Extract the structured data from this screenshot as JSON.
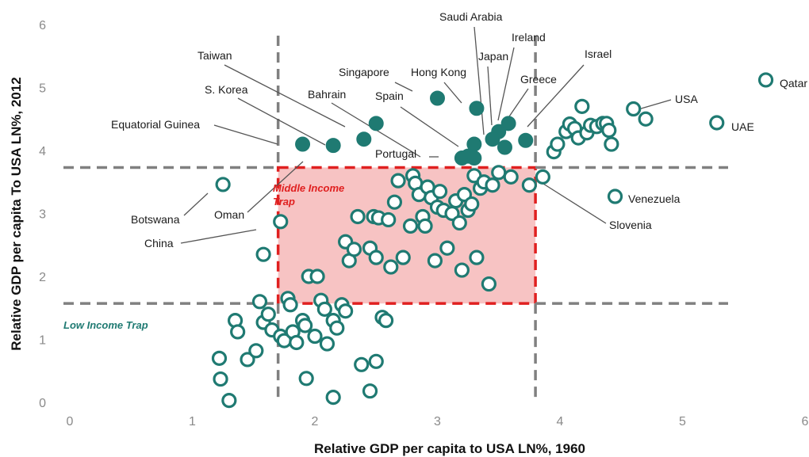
{
  "chart_data": {
    "type": "scatter",
    "xlabel": "Relative GDP per capita to USA LN%, 1960",
    "ylabel": "Relative GDP  per capita To USA LN%, 2012",
    "xlim": [
      0,
      6
    ],
    "ylim": [
      0,
      6
    ],
    "x_ticks": [
      "0",
      "1",
      "2",
      "3",
      "4",
      "5",
      "6"
    ],
    "y_ticks": [
      "0",
      "1",
      "2",
      "3",
      "4",
      "5",
      "6"
    ],
    "grid": false,
    "colors": {
      "marker": "#1f7a72",
      "trap_fill": "#f7c3c3",
      "trap_border": "#e02020",
      "guide": "#808080"
    },
    "thresholds": {
      "x_low": 1.7,
      "x_high": 3.8,
      "y_low": 1.57,
      "y_high": 3.73
    },
    "zones": {
      "middle_income": "Middle Income\nTrap",
      "low_income": "Low Income Trap"
    },
    "highlighted": [
      {
        "label": "Equatorial Guinea",
        "x": 1.9,
        "y": 4.1
      },
      {
        "label": "S. Korea",
        "x": 2.15,
        "y": 4.08
      },
      {
        "label": "Taiwan",
        "x": 2.5,
        "y": 4.43
      },
      {
        "label": "Bahrain",
        "x": 2.4,
        "y": 4.18
      },
      {
        "label": "Singapore",
        "x": 3.0,
        "y": 4.83
      },
      {
        "label": "Hong Kong",
        "x": 3.32,
        "y": 4.67
      },
      {
        "label": "Saudi Arabia",
        "x": 3.3,
        "y": 4.1
      },
      {
        "label": "Spain",
        "x": 3.25,
        "y": 3.91
      },
      {
        "label": "Portugal",
        "x": 3.2,
        "y": 3.88
      },
      {
        "label": "Japan",
        "x": 3.5,
        "y": 4.3
      },
      {
        "label": "Ireland",
        "x": 3.58,
        "y": 4.43
      },
      {
        "label": "Greece",
        "x": 3.45,
        "y": 4.18
      },
      {
        "label": "Israel",
        "x": 3.72,
        "y": 4.16
      },
      {
        "label": "",
        "x": 3.3,
        "y": 3.88
      },
      {
        "label": "",
        "x": 3.55,
        "y": 4.05
      }
    ],
    "labeled_open": [
      {
        "label": "Qatar",
        "x": 5.68,
        "y": 5.12
      },
      {
        "label": "USA",
        "x": 4.6,
        "y": 4.66
      },
      {
        "label": "UAE",
        "x": 5.28,
        "y": 4.44
      },
      {
        "label": "Venezuela",
        "x": 4.45,
        "y": 3.27
      },
      {
        "label": "Slovenia",
        "x": 3.86,
        "y": 3.58
      },
      {
        "label": "Botswana",
        "x": 1.25,
        "y": 3.46
      },
      {
        "label": "Oman",
        "x": 1.72,
        "y": 2.87
      },
      {
        "label": "China",
        "x": 1.58,
        "y": 2.35
      }
    ],
    "points": [
      {
        "x": 1.22,
        "y": 0.7
      },
      {
        "x": 1.23,
        "y": 0.37
      },
      {
        "x": 1.3,
        "y": 0.03
      },
      {
        "x": 1.35,
        "y": 1.3
      },
      {
        "x": 1.37,
        "y": 1.12
      },
      {
        "x": 1.45,
        "y": 0.68
      },
      {
        "x": 1.52,
        "y": 0.82
      },
      {
        "x": 1.55,
        "y": 1.6
      },
      {
        "x": 1.58,
        "y": 1.27
      },
      {
        "x": 1.62,
        "y": 1.4
      },
      {
        "x": 1.65,
        "y": 1.15
      },
      {
        "x": 1.72,
        "y": 1.05
      },
      {
        "x": 1.75,
        "y": 0.98
      },
      {
        "x": 1.78,
        "y": 1.65
      },
      {
        "x": 1.8,
        "y": 1.55
      },
      {
        "x": 1.82,
        "y": 1.12
      },
      {
        "x": 1.85,
        "y": 0.95
      },
      {
        "x": 1.9,
        "y": 1.3
      },
      {
        "x": 1.92,
        "y": 1.22
      },
      {
        "x": 1.95,
        "y": 2.0
      },
      {
        "x": 1.93,
        "y": 0.38
      },
      {
        "x": 2.0,
        "y": 1.05
      },
      {
        "x": 2.02,
        "y": 2.0
      },
      {
        "x": 2.05,
        "y": 1.62
      },
      {
        "x": 2.08,
        "y": 1.48
      },
      {
        "x": 2.1,
        "y": 0.93
      },
      {
        "x": 2.15,
        "y": 1.3
      },
      {
        "x": 2.18,
        "y": 1.18
      },
      {
        "x": 2.22,
        "y": 1.55
      },
      {
        "x": 2.25,
        "y": 1.45
      },
      {
        "x": 2.15,
        "y": 0.08
      },
      {
        "x": 2.25,
        "y": 2.55
      },
      {
        "x": 2.28,
        "y": 2.25
      },
      {
        "x": 2.32,
        "y": 2.43
      },
      {
        "x": 2.35,
        "y": 2.95
      },
      {
        "x": 2.38,
        "y": 0.6
      },
      {
        "x": 2.45,
        "y": 2.45
      },
      {
        "x": 2.48,
        "y": 2.95
      },
      {
        "x": 2.5,
        "y": 2.3
      },
      {
        "x": 2.52,
        "y": 2.93
      },
      {
        "x": 2.55,
        "y": 1.35
      },
      {
        "x": 2.58,
        "y": 1.3
      },
      {
        "x": 2.45,
        "y": 0.18
      },
      {
        "x": 2.5,
        "y": 0.65
      },
      {
        "x": 2.6,
        "y": 2.9
      },
      {
        "x": 2.62,
        "y": 2.15
      },
      {
        "x": 2.65,
        "y": 3.18
      },
      {
        "x": 2.68,
        "y": 3.52
      },
      {
        "x": 2.72,
        "y": 2.3
      },
      {
        "x": 2.78,
        "y": 2.8
      },
      {
        "x": 2.8,
        "y": 3.6
      },
      {
        "x": 2.82,
        "y": 3.48
      },
      {
        "x": 2.85,
        "y": 3.3
      },
      {
        "x": 2.88,
        "y": 2.95
      },
      {
        "x": 2.9,
        "y": 2.8
      },
      {
        "x": 2.92,
        "y": 3.42
      },
      {
        "x": 2.95,
        "y": 3.25
      },
      {
        "x": 2.98,
        "y": 2.25
      },
      {
        "x": 3.0,
        "y": 3.1
      },
      {
        "x": 3.02,
        "y": 3.35
      },
      {
        "x": 3.05,
        "y": 3.05
      },
      {
        "x": 3.08,
        "y": 2.45
      },
      {
        "x": 3.12,
        "y": 3.0
      },
      {
        "x": 3.15,
        "y": 3.2
      },
      {
        "x": 3.18,
        "y": 2.85
      },
      {
        "x": 3.2,
        "y": 2.1
      },
      {
        "x": 3.22,
        "y": 3.3
      },
      {
        "x": 3.25,
        "y": 3.05
      },
      {
        "x": 3.28,
        "y": 3.15
      },
      {
        "x": 3.3,
        "y": 3.6
      },
      {
        "x": 3.32,
        "y": 2.3
      },
      {
        "x": 3.35,
        "y": 3.4
      },
      {
        "x": 3.38,
        "y": 3.5
      },
      {
        "x": 3.42,
        "y": 1.88
      },
      {
        "x": 3.45,
        "y": 3.45
      },
      {
        "x": 3.5,
        "y": 3.65
      },
      {
        "x": 3.6,
        "y": 3.58
      },
      {
        "x": 3.75,
        "y": 3.45
      },
      {
        "x": 3.95,
        "y": 3.98
      },
      {
        "x": 3.98,
        "y": 4.1
      },
      {
        "x": 4.05,
        "y": 4.3
      },
      {
        "x": 4.08,
        "y": 4.42
      },
      {
        "x": 4.12,
        "y": 4.35
      },
      {
        "x": 4.15,
        "y": 4.2
      },
      {
        "x": 4.18,
        "y": 4.7
      },
      {
        "x": 4.22,
        "y": 4.28
      },
      {
        "x": 4.25,
        "y": 4.4
      },
      {
        "x": 4.3,
        "y": 4.38
      },
      {
        "x": 4.35,
        "y": 4.43
      },
      {
        "x": 4.38,
        "y": 4.43
      },
      {
        "x": 4.4,
        "y": 4.32
      },
      {
        "x": 4.42,
        "y": 4.1
      },
      {
        "x": 4.7,
        "y": 4.5
      }
    ]
  }
}
